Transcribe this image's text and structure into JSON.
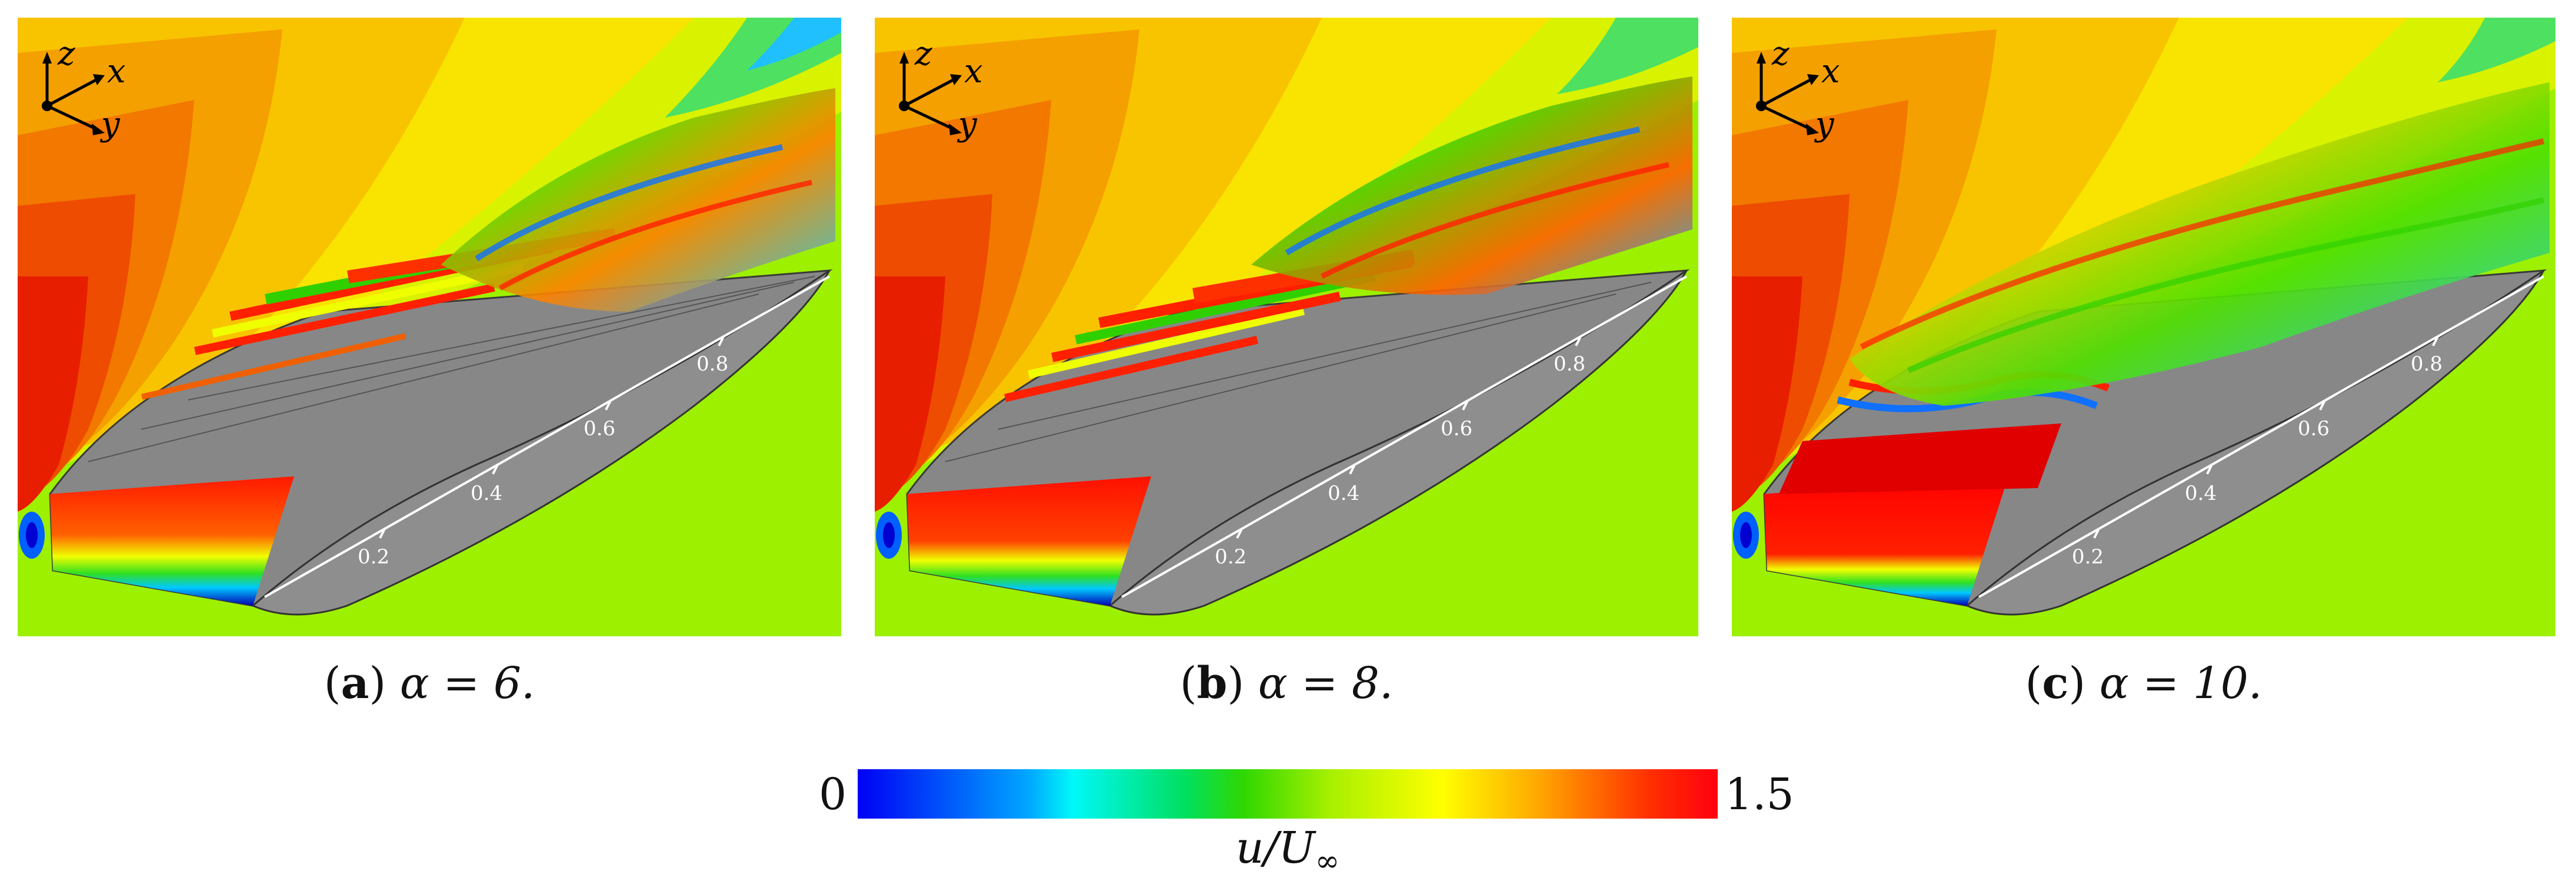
{
  "panels": [
    {
      "letter": "a",
      "caption_expr": "α = 6."
    },
    {
      "letter": "b",
      "caption_expr": "α = 8."
    },
    {
      "letter": "c",
      "caption_expr": "α = 10."
    }
  ],
  "axes_triad": {
    "z": "z",
    "x": "x",
    "y": "y"
  },
  "chord_ticks": [
    "0.2",
    "0.4",
    "0.6",
    "0.8"
  ],
  "colorbar": {
    "min_label": "0",
    "max_label": "1.5",
    "title_main": "u/U",
    "title_sub": "∞",
    "colormap": [
      "#0000f5",
      "#00a8ff",
      "#00f8f8",
      "#00e060",
      "#a8f000",
      "#ffff00",
      "#ffa000",
      "#ff0010"
    ]
  },
  "colors": {
    "background_field": "#9df000",
    "wing_surface": "#808080"
  }
}
